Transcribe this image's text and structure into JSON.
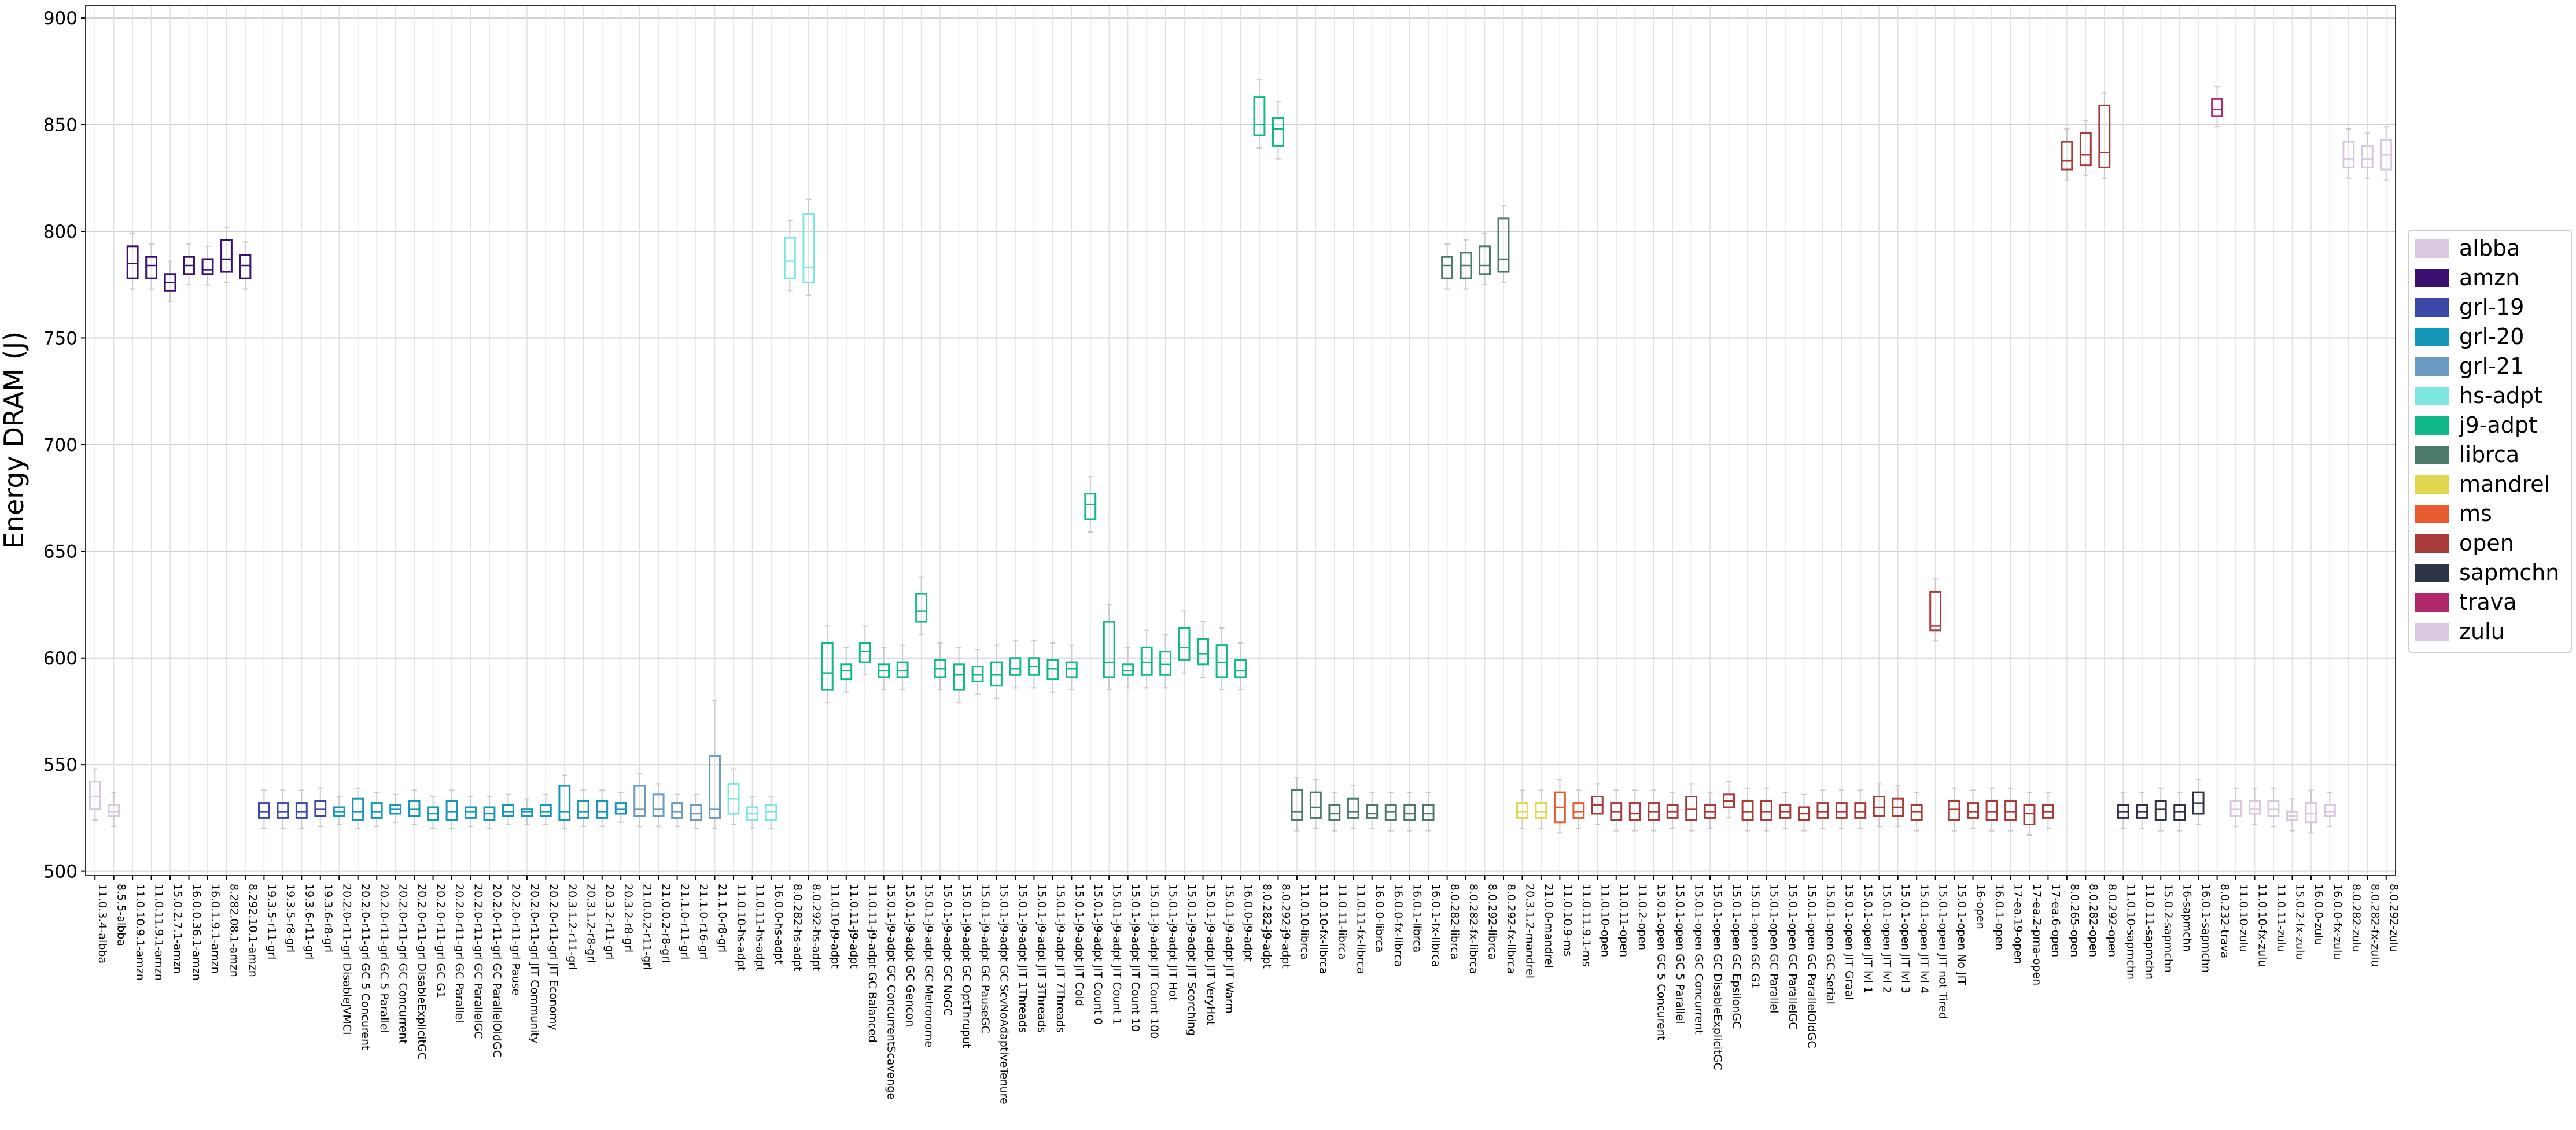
{
  "chart_data": {
    "type": "box",
    "y_label": "Energy DRAM (J)",
    "ylim": [
      498,
      906
    ],
    "yticks": [
      500,
      550,
      600,
      650,
      700,
      750,
      800,
      850,
      900
    ],
    "grid": true,
    "legend": "right",
    "series": [
      {
        "name": "albba",
        "color": "#d8c8e0",
        "categories": [
          "11.0.3.4-albba",
          "8.5.5-albba"
        ],
        "low": [
          524,
          521
        ],
        "q1": [
          529,
          526
        ],
        "median": [
          535,
          528
        ],
        "q3": [
          542,
          531
        ],
        "high": [
          548,
          537
        ]
      },
      {
        "name": "amzn",
        "color": "#3b0f6f",
        "categories": [
          "11.0.10.9.1-amzn",
          "11.0.11.9.1-amzn",
          "15.0.2.7.1-amzn",
          "16.0.0.36.1-amzn",
          "16.0.1.9.1-amzn",
          "8.282.08.1-amzn",
          "8.292.10.1-amzn"
        ],
        "low": [
          773,
          773,
          767,
          775,
          775,
          776,
          773
        ],
        "q1": [
          778,
          778,
          772,
          780,
          780,
          781,
          778
        ],
        "median": [
          785,
          784,
          776,
          784,
          782,
          787,
          784
        ],
        "q3": [
          793,
          788,
          780,
          788,
          787,
          796,
          789
        ],
        "high": [
          799,
          794,
          786,
          794,
          793,
          802,
          795
        ]
      },
      {
        "name": "grl-19",
        "color": "#3a48a8",
        "categories": [
          "19.3.5-r11-grl",
          "19.3.5-r8-grl",
          "19.3.6-r11-grl",
          "19.3.6-r8-grl"
        ],
        "low": [
          520,
          520,
          520,
          521
        ],
        "q1": [
          525,
          525,
          525,
          526
        ],
        "median": [
          528,
          528,
          528,
          529
        ],
        "q3": [
          532,
          532,
          532,
          533
        ],
        "high": [
          538,
          538,
          538,
          539
        ]
      },
      {
        "name": "grl-20",
        "color": "#1598b8",
        "categories": [
          "20.2.0-r11-grl DisableJVMCI",
          "20.2.0-r11-grl GC 5 Concurent",
          "20.2.0-r11-grl GC 5 Parallel",
          "20.2.0-r11-grl GC Concurrent",
          "20.2.0-r11-grl DisableExplicitGC",
          "20.2.0-r11-grl GC G1",
          "20.2.0-r11-grl GC Parallel",
          "20.2.0-r11-grl GC ParallelGC",
          "20.2.0-r11-grl GC ParallelOldGC",
          "20.2.0-r11-grl Pause",
          "20.2.0-r11-grl JIT Community",
          "20.2.0-r11-grl JIT Economy",
          "20.3.1.2-r11-grl",
          "20.3.1.2-r8-grl",
          "20.3.2-r11-grl",
          "20.3.2-r8-grl"
        ],
        "low": [
          522,
          520,
          521,
          523,
          522,
          520,
          520,
          521,
          520,
          522,
          522,
          522,
          520,
          521,
          521,
          523
        ],
        "q1": [
          526,
          524,
          525,
          527,
          526,
          524,
          524,
          525,
          524,
          526,
          526,
          526,
          524,
          525,
          525,
          527
        ],
        "median": [
          528,
          528,
          528,
          529,
          529,
          527,
          528,
          528,
          527,
          528,
          528,
          528,
          528,
          528,
          528,
          529
        ],
        "q3": [
          530,
          534,
          532,
          531,
          533,
          530,
          533,
          530,
          530,
          531,
          529,
          531,
          540,
          533,
          533,
          532
        ],
        "high": [
          535,
          539,
          537,
          536,
          538,
          535,
          538,
          535,
          535,
          536,
          534,
          536,
          545,
          538,
          538,
          537
        ]
      },
      {
        "name": "grl-21",
        "color": "#6a9ac0",
        "categories": [
          "21.0.0.2-r11-grl",
          "21.0.0.2-r8-grl",
          "21.1.0-r11-grl",
          "21.1.0-r16-grl",
          "21.1.0-r8-grl"
        ],
        "low": [
          521,
          521,
          521,
          520,
          520
        ],
        "q1": [
          526,
          526,
          525,
          524,
          525
        ],
        "median": [
          529,
          529,
          528,
          527,
          529
        ],
        "q3": [
          540,
          536,
          532,
          531,
          554
        ],
        "high": [
          546,
          541,
          536,
          536,
          580
        ]
      },
      {
        "name": "hs-adpt",
        "color": "#7ee8e0",
        "categories": [
          "11.0.10-hs-adpt",
          "11.0.11-hs-adpt",
          "16.0.0-hs-adpt",
          "8.0.282-hs-adpt",
          "8.0.292-hs-adpt"
        ],
        "low": [
          522,
          520,
          520,
          772,
          770
        ],
        "q1": [
          527,
          524,
          524,
          778,
          776
        ],
        "median": [
          534,
          527,
          528,
          786,
          783
        ],
        "q3": [
          541,
          530,
          531,
          797,
          808
        ],
        "high": [
          548,
          535,
          535,
          805,
          815
        ]
      },
      {
        "name": "j9-adpt",
        "color": "#10b88a",
        "categories": [
          "11.0.10-j9-adpt",
          "11.0.11-j9-adpt",
          "11.0.11-j9-adpt GC Balanced",
          "15.0.1-j9-adpt GC ConcurrentScavenge",
          "15.0.1-j9-adpt GC Gencon",
          "15.0.1-j9-adpt GC Metronome",
          "15.0.1-j9-adpt GC NoGC",
          "15.0.1-j9-adpt GC OptThruput",
          "15.0.1-j9-adpt GC PauseGC",
          "15.0.1-j9-adpt GC ScvNoAdaptiveTenure",
          "15.0.1-j9-adpt JIT 1Threads",
          "15.0.1-j9-adpt JIT 3Threads",
          "15.0.1-j9-adpt JIT 7Threads",
          "15.0.1-j9-adpt JIT Cold",
          "15.0.1-j9-adpt JIT Count 0",
          "15.0.1-j9-adpt JIT Count 1",
          "15.0.1-j9-adpt JIT Count 10",
          "15.0.1-j9-adpt JIT Count 100",
          "15.0.1-j9-adpt JIT Hot",
          "15.0.1-j9-adpt JIT Scorching",
          "15.0.1-j9-adpt JIT VeryHot",
          "15.0.1-j9-adpt JIT Warm",
          "16.0.0-j9-adpt",
          "8.0.282-j9-adpt",
          "8.0.292-j9-adpt"
        ],
        "low": [
          579,
          584,
          592,
          585,
          585,
          611,
          585,
          579,
          583,
          581,
          586,
          586,
          584,
          585,
          659,
          585,
          586,
          586,
          586,
          593,
          591,
          585,
          585,
          839,
          834
        ],
        "q1": [
          585,
          590,
          598,
          591,
          591,
          617,
          591,
          585,
          589,
          587,
          592,
          592,
          590,
          591,
          665,
          591,
          592,
          592,
          592,
          599,
          597,
          591,
          591,
          845,
          840
        ],
        "median": [
          593,
          594,
          603,
          594,
          594,
          622,
          595,
          592,
          592,
          592,
          595,
          596,
          595,
          595,
          672,
          598,
          594,
          598,
          597,
          605,
          602,
          598,
          594,
          850,
          848
        ],
        "q3": [
          607,
          597,
          607,
          597,
          598,
          630,
          599,
          597,
          596,
          598,
          600,
          600,
          599,
          598,
          677,
          617,
          597,
          605,
          603,
          614,
          609,
          606,
          599,
          863,
          853
        ],
        "high": [
          615,
          605,
          615,
          605,
          606,
          638,
          607,
          605,
          604,
          606,
          608,
          608,
          607,
          606,
          685,
          625,
          605,
          613,
          611,
          622,
          617,
          614,
          607,
          871,
          861
        ]
      },
      {
        "name": "librca",
        "color": "#4a7a6a",
        "categories": [
          "11.0.10-librca",
          "11.0.10-fx-librca",
          "11.0.11-librca",
          "11.0.11-fx-librca",
          "16.0.0-librca",
          "16.0.0-fx-librca",
          "16.0.1-librca",
          "16.0.1-fx-librca",
          "8.0.282-librca",
          "8.0.282-fx-librca",
          "8.0.292-librca",
          "8.0.292-fx-librca"
        ],
        "low": [
          519,
          520,
          519,
          520,
          520,
          519,
          519,
          519,
          773,
          773,
          775,
          776
        ],
        "q1": [
          524,
          525,
          524,
          525,
          525,
          524,
          524,
          524,
          778,
          778,
          780,
          781
        ],
        "median": [
          528,
          530,
          527,
          528,
          527,
          528,
          527,
          527,
          784,
          784,
          784,
          787
        ],
        "q3": [
          538,
          537,
          531,
          534,
          531,
          531,
          531,
          531,
          788,
          790,
          793,
          806
        ],
        "high": [
          544,
          543,
          537,
          540,
          537,
          537,
          537,
          537,
          794,
          796,
          799,
          812
        ]
      },
      {
        "name": "mandrel",
        "color": "#e0d850",
        "categories": [
          "20.3.1.2-mandrel",
          "21.0.0-mandrel"
        ],
        "low": [
          520,
          520
        ],
        "q1": [
          525,
          525
        ],
        "median": [
          528,
          528
        ],
        "q3": [
          532,
          532
        ],
        "high": [
          538,
          538
        ]
      },
      {
        "name": "ms",
        "color": "#e85a30",
        "categories": [
          "11.0.10.9-ms",
          "11.0.11.9.1-ms"
        ],
        "low": [
          518,
          520
        ],
        "q1": [
          523,
          525
        ],
        "median": [
          530,
          528
        ],
        "q3": [
          537,
          532
        ],
        "high": [
          543,
          538
        ]
      },
      {
        "name": "open",
        "color": "#a83a38",
        "categories": [
          "11.0.10-open",
          "11.0.11-open",
          "11.0.2-open",
          "15.0.1-open GC 5 Concurent",
          "15.0.1-open GC 5 Parallel",
          "15.0.1-open GC Concurrent",
          "15.0.1-open GC DisableExplicitGC",
          "15.0.1-open GC EpsilonGC",
          "15.0.1-open GC G1",
          "15.0.1-open GC Parallel",
          "15.0.1-open GC ParallelGC",
          "15.0.1-open GC ParallelOldGC",
          "15.0.1-open GC Serial",
          "15.0.1-open JIT Graal",
          "15.0.1-open JIT lvl 1",
          "15.0.1-open JIT lvl 2",
          "15.0.1-open JIT lvl 3",
          "15.0.1-open JIT lvl 4",
          "15.0.1-open JIT not Tired",
          "15.0.1-open No JIT",
          "16-open",
          "16.0.1-open",
          "17-ea.19-open",
          "17-ea.2-pma-open",
          "17-ea.6-open",
          "8.0.265-open",
          "8.0.282-open",
          "8.0.292-open"
        ],
        "low": [
          522,
          519,
          519,
          519,
          520,
          519,
          520,
          525,
          519,
          519,
          520,
          519,
          520,
          520,
          520,
          521,
          521,
          519,
          608,
          519,
          520,
          519,
          519,
          517,
          520,
          824,
          826,
          825
        ],
        "q1": [
          527,
          524,
          524,
          524,
          525,
          524,
          525,
          530,
          524,
          524,
          525,
          524,
          525,
          525,
          525,
          526,
          526,
          524,
          613,
          524,
          525,
          524,
          524,
          522,
          525,
          829,
          831,
          830
        ],
        "median": [
          531,
          528,
          527,
          528,
          528,
          529,
          528,
          533,
          528,
          528,
          528,
          527,
          528,
          528,
          528,
          530,
          530,
          528,
          615,
          529,
          528,
          528,
          528,
          527,
          528,
          833,
          836,
          837
        ],
        "q3": [
          535,
          532,
          532,
          532,
          531,
          535,
          531,
          536,
          533,
          533,
          531,
          530,
          532,
          532,
          532,
          535,
          534,
          531,
          631,
          533,
          532,
          533,
          533,
          531,
          531,
          842,
          846,
          859
        ],
        "high": [
          541,
          538,
          538,
          538,
          537,
          541,
          537,
          542,
          539,
          539,
          537,
          536,
          538,
          538,
          538,
          541,
          540,
          537,
          637,
          539,
          538,
          539,
          539,
          537,
          537,
          848,
          852,
          865
        ]
      },
      {
        "name": "sapmchn",
        "color": "#2e3448",
        "categories": [
          "11.0.10-sapmchn",
          "11.0.11-sapmchn",
          "15.0.2-sapmchn",
          "16-sapmchn",
          "16.0.1-sapmchn"
        ],
        "low": [
          520,
          520,
          519,
          519,
          522
        ],
        "q1": [
          525,
          525,
          524,
          524,
          527
        ],
        "median": [
          528,
          528,
          529,
          528,
          532
        ],
        "q3": [
          531,
          531,
          533,
          531,
          537
        ],
        "high": [
          537,
          537,
          539,
          537,
          543
        ]
      },
      {
        "name": "trava",
        "color": "#b0286a",
        "categories": [
          "8.0.232-trava"
        ],
        "low": [
          849
        ],
        "q1": [
          854
        ],
        "median": [
          857
        ],
        "q3": [
          862
        ],
        "high": [
          868
        ]
      },
      {
        "name": "zulu",
        "color": "#d8c8e0",
        "categories": [
          "11.0.10-zulu",
          "11.0.10-fx-zulu",
          "11.0.11-zulu",
          "15.0.2-fx-zulu",
          "16.0.0-zulu",
          "16.0.0-fx-zulu",
          "8.0.282-zulu",
          "8.0.282-fx-zulu",
          "8.0.292-zulu"
        ],
        "low": [
          521,
          522,
          521,
          519,
          518,
          521,
          825,
          825,
          824
        ],
        "q1": [
          526,
          527,
          526,
          524,
          523,
          526,
          830,
          830,
          829
        ],
        "median": [
          529,
          529,
          529,
          526,
          527,
          528,
          834,
          834,
          836
        ],
        "q3": [
          533,
          533,
          533,
          528,
          532,
          531,
          842,
          840,
          843
        ],
        "high": [
          539,
          539,
          539,
          534,
          538,
          537,
          848,
          846,
          849
        ]
      }
    ]
  }
}
